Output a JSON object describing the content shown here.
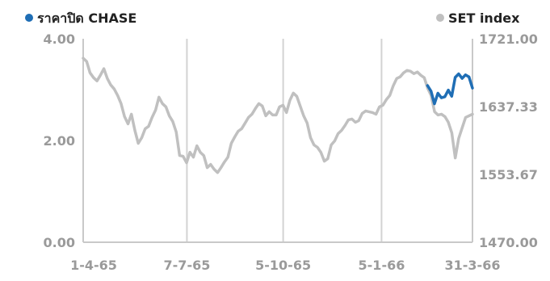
{
  "chart_data": {
    "type": "line",
    "legend": [
      {
        "name": "ราคาปิด CHASE",
        "color": "#1f6eb5",
        "axis": "left",
        "placement": "top-left"
      },
      {
        "name": "SET index",
        "color": "#c0c0c0",
        "axis": "right",
        "placement": "top-right"
      }
    ],
    "x_ticks": [
      "1-4-65",
      "7-7-65",
      "5-10-65",
      "5-1-66",
      "31-3-66"
    ],
    "x_range": [
      "1-4-65",
      "31-3-66"
    ],
    "left_axis": {
      "ticks": [
        "0.00",
        "2.00",
        "4.00"
      ],
      "range": [
        0,
        4
      ]
    },
    "right_axis": {
      "ticks": [
        "1470.00",
        "1553.67",
        "1637.33",
        "1721.00"
      ],
      "range": [
        1470,
        1721
      ]
    },
    "grid": {
      "vertical": true,
      "horizontal": false
    },
    "series": [
      {
        "name": "SET index",
        "color": "#c0c0c0",
        "axis": "right",
        "x_start": "1-4-65",
        "x_end": "31-3-66",
        "values": [
          1697,
          1693,
          1679,
          1673,
          1669,
          1676,
          1684,
          1672,
          1664,
          1659,
          1651,
          1641,
          1625,
          1616,
          1628,
          1608,
          1592,
          1599,
          1610,
          1613,
          1624,
          1633,
          1649,
          1641,
          1637,
          1626,
          1619,
          1606,
          1577,
          1576,
          1568,
          1581,
          1575,
          1589,
          1581,
          1577,
          1562,
          1566,
          1560,
          1556,
          1562,
          1569,
          1575,
          1592,
          1600,
          1607,
          1610,
          1617,
          1624,
          1628,
          1635,
          1641,
          1638,
          1626,
          1631,
          1627,
          1627,
          1637,
          1639,
          1630,
          1645,
          1654,
          1650,
          1638,
          1626,
          1617,
          1599,
          1590,
          1587,
          1581,
          1570,
          1573,
          1590,
          1595,
          1604,
          1608,
          1614,
          1621,
          1622,
          1618,
          1620,
          1629,
          1632,
          1631,
          1630,
          1628,
          1637,
          1639,
          1646,
          1651,
          1663,
          1672,
          1674,
          1679,
          1682,
          1681,
          1678,
          1680,
          1676,
          1673,
          1660,
          1651,
          1631,
          1627,
          1628,
          1625,
          1618,
          1605,
          1574,
          1598,
          1611,
          1624,
          1626,
          1628
        ]
      },
      {
        "name": "ราคาปิด CHASE",
        "color": "#1f6eb5",
        "axis": "left",
        "x_start": "17-2-66",
        "x_end": "31-3-66",
        "values": [
          3.08,
          2.97,
          2.72,
          2.93,
          2.84,
          2.86,
          2.99,
          2.87,
          3.24,
          3.31,
          3.22,
          3.29,
          3.25,
          3.03
        ]
      }
    ]
  }
}
